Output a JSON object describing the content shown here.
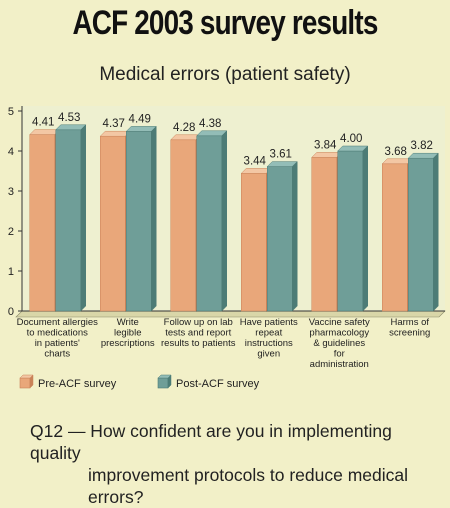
{
  "header": {
    "title": "ACF 2003 survey results",
    "subtitle": "Medical errors (patient safety)"
  },
  "footer": {
    "question_line1": "Q12 — How confident are you in implementing quality",
    "question_line2": "improvement protocols to reduce medical errors?"
  },
  "colors": {
    "pre": "#e9a77a",
    "pre_dark": "#c98258",
    "post": "#6f9e98",
    "post_dark": "#4d7c76",
    "background": "#f2f0c8",
    "plot_background": "#eef0d0"
  },
  "chart_data": {
    "type": "bar",
    "categories": [
      [
        "Document allergies",
        "to medications",
        "in patients'",
        "charts"
      ],
      [
        "Write",
        "legible",
        "prescriptions"
      ],
      [
        "Follow up on lab",
        "tests and report",
        "results to patients"
      ],
      [
        "Have patients",
        "repeat",
        "instructions",
        "given"
      ],
      [
        "Vaccine safety",
        "pharmacology",
        "& guidelines",
        "for",
        "administration"
      ],
      [
        "Harms of",
        "screening"
      ]
    ],
    "series": [
      {
        "name": "Pre-ACF survey",
        "values": [
          4.41,
          4.37,
          4.28,
          3.44,
          3.84,
          3.68
        ]
      },
      {
        "name": "Post-ACF survey",
        "values": [
          4.53,
          4.49,
          4.38,
          3.61,
          4.0,
          3.82
        ]
      }
    ],
    "value_labels": [
      [
        "4.41",
        "4.37",
        "4.28",
        "3.44",
        "3.84",
        "3.68"
      ],
      [
        "4.53",
        "4.49",
        "4.38",
        "3.61",
        "4.00",
        "3.82"
      ]
    ],
    "ylim": [
      0,
      5
    ],
    "yticks": [
      "0",
      "1",
      "2",
      "3",
      "4",
      "5"
    ],
    "legend_position": "bottom-left",
    "grid": false
  }
}
